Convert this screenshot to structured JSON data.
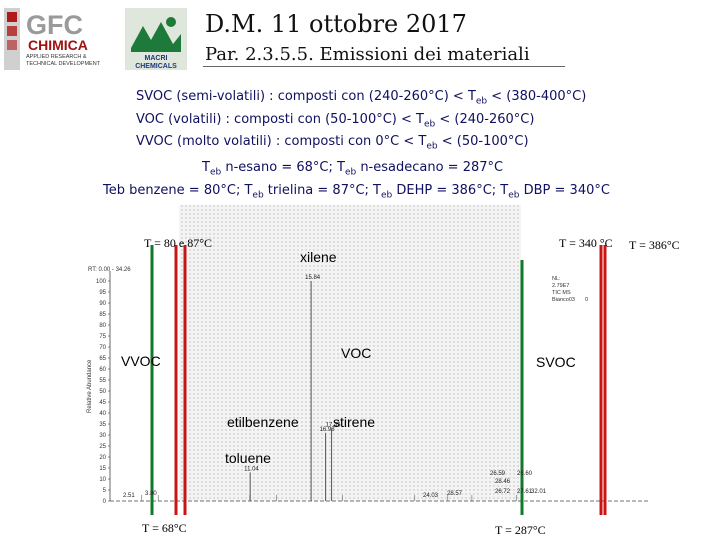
{
  "logos": {
    "gfc": {
      "name": "GFC",
      "line2": "CHIMICA",
      "tagline": "APPLIED RESEARCH & TECHNICAL DEVELOPMENT"
    },
    "macri": {
      "line1": "MACRI",
      "line2": "CHEMICALS"
    }
  },
  "header": {
    "title": "D.M. 11 ottobre 2017",
    "subtitle": "Par. 2.3.5.5. Emissioni dei materiali"
  },
  "definitions": {
    "svoc": {
      "a": "SVOC (semi-volatili) : composti con (240-260°C) < T",
      "sub": "eb",
      "b": " < (380-400°C)"
    },
    "voc": {
      "a": "VOC  (volatili) : composti con (50-100°C) < T",
      "sub": "eb",
      "b": " < (240-260°C)"
    },
    "vvoc": {
      "a": "VVOC (molto volatili) : composti con 0°C < T",
      "sub": "eb",
      "b": " < (50-100°C)"
    }
  },
  "boiling_line1": {
    "p1": "T",
    "s1": "eb",
    "p2": " n-esano = 68°C; T",
    "s2": "eb",
    "p3": " n-esadecano = 287°C"
  },
  "boiling_line2": {
    "p1": "Teb benzene = 80°C; T",
    "s1": "eb",
    "p2": " trielina =  87°C; T",
    "s2": "eb",
    "p3": " DEHP =  386°C; T",
    "s3": "eb",
    "p4": " DBP =  340°C"
  },
  "chart_labels": {
    "t80_87": "T = 80 e 87°C",
    "t340": "T = 340 °C",
    "t386": "T = 386°C",
    "t68": "T = 68°C",
    "t287": "T = 287°C",
    "vvoc": "VVOC",
    "voc": "VOC",
    "svoc": "SVOC",
    "xilene": "xilene",
    "etilbenzene": "etilbenzene",
    "stirene": "stirene",
    "toluene": "toluene"
  },
  "chromatogram": {
    "rt_label": "RT: 0.00 - 34.26",
    "y_axis_label": "Relative Abundance",
    "y_ticks": [
      "100",
      "95",
      "90",
      "85",
      "80",
      "75",
      "70",
      "65",
      "60",
      "55",
      "50",
      "45",
      "40",
      "35",
      "30",
      "25",
      "20",
      "15",
      "10",
      "5",
      "0"
    ],
    "info_box": [
      "NL:",
      "2.79E7",
      "TIC MS",
      "Bianco03",
      "0"
    ],
    "peaks": [
      {
        "rt": 15.84,
        "label": "15.84",
        "height": 100
      },
      {
        "rt": 16.98,
        "label": "16.98",
        "height": 31
      },
      {
        "rt": 17.45,
        "label": "17.45",
        "height": 33
      },
      {
        "rt": 11.04,
        "label": "11.04",
        "height": 13
      }
    ],
    "minor_labels": [
      "2.51",
      "3.80",
      "26.59",
      "26.60",
      "28.46",
      "24.03",
      "28.57",
      "26.72",
      "27.61",
      "32.01"
    ]
  },
  "colors": {
    "green": "#117a2a",
    "red": "#c81414",
    "dotted_bg": "#e2e2e2"
  }
}
